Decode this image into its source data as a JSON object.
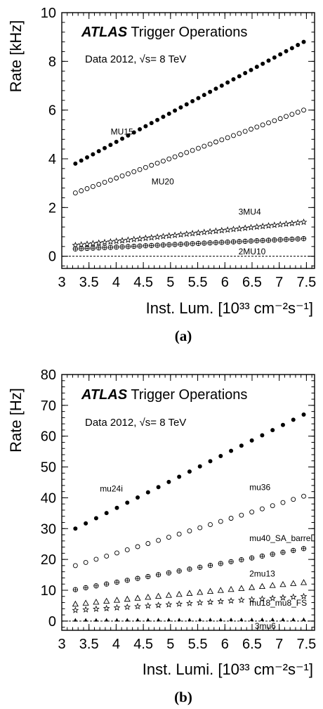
{
  "chart_data": [
    {
      "type": "scatter",
      "panel_label": "(a)",
      "title_bold": "ATLAS",
      "title_rest": " Trigger Operations",
      "subtitle": "Data 2012,  √s= 8 TeV",
      "xlabel": "Inst. Lum. [10³³ cm⁻²s⁻¹]",
      "ylabel": "Rate [kHz]",
      "xlim": [
        3,
        7.65
      ],
      "ylim": [
        -0.5,
        10
      ],
      "xticks": [
        3,
        3.5,
        4,
        4.5,
        5,
        5.5,
        6,
        6.5,
        7,
        7.5
      ],
      "xtick_labels": [
        "3",
        "3.5",
        "4",
        "4.5",
        "5",
        "5.5",
        "6",
        "6.5",
        "7",
        "7.5"
      ],
      "yticks": [
        0,
        2,
        4,
        6,
        8,
        10
      ],
      "ytick_labels": [
        "0",
        "2",
        "4",
        "6",
        "8",
        "10"
      ],
      "reference_line_y": 0,
      "series": [
        {
          "name": "MU15",
          "marker": "filled-circle",
          "x_start": 3.25,
          "x_end": 7.45,
          "y_start": 3.8,
          "y_end": 8.8,
          "n": 40,
          "label_x": 3.9,
          "label_y": 5.0
        },
        {
          "name": "MU20",
          "marker": "open-circle",
          "x_start": 3.25,
          "x_end": 7.45,
          "y_start": 2.6,
          "y_end": 6.0,
          "n": 40,
          "label_x": 4.65,
          "label_y": 2.95
        },
        {
          "name": "3MU4",
          "marker": "star",
          "x_start": 3.25,
          "x_end": 7.45,
          "y_start": 0.45,
          "y_end": 1.4,
          "n": 40,
          "label_x": 6.25,
          "label_y": 1.7
        },
        {
          "name": "2MU10",
          "marker": "open-circle-cross",
          "x_start": 3.25,
          "x_end": 7.45,
          "y_start": 0.3,
          "y_end": 0.72,
          "n": 40,
          "label_x": 6.25,
          "label_y": 0.08
        }
      ]
    },
    {
      "type": "scatter",
      "panel_label": "(b)",
      "title_bold": "ATLAS",
      "title_rest": " Trigger Operations",
      "subtitle": "Data 2012,   √s= 8 TeV",
      "xlabel": "Inst. Lumi. [10³³ cm⁻²s⁻¹]",
      "ylabel": "Rate [Hz]",
      "xlim": [
        3,
        7.65
      ],
      "ylim": [
        -3,
        80
      ],
      "xticks": [
        3,
        3.5,
        4,
        4.5,
        5,
        5.5,
        6,
        6.5,
        7,
        7.5
      ],
      "xtick_labels": [
        "3",
        "3.5",
        "4",
        "4.5",
        "5",
        "5.5",
        "6",
        "6.5",
        "7",
        "7.5"
      ],
      "yticks": [
        0,
        10,
        20,
        30,
        40,
        50,
        60,
        70,
        80
      ],
      "ytick_labels": [
        "0",
        "10",
        "20",
        "30",
        "40",
        "50",
        "60",
        "70",
        "80"
      ],
      "reference_line_y": 0,
      "series": [
        {
          "name": "mu24i",
          "marker": "filled-circle",
          "x_start": 3.25,
          "x_end": 7.45,
          "y_start": 30,
          "y_end": 67,
          "n": 23,
          "label_x": 3.7,
          "label_y": 42
        },
        {
          "name": "mu36",
          "marker": "open-circle",
          "x_start": 3.25,
          "x_end": 7.45,
          "y_start": 18,
          "y_end": 40.5,
          "n": 23,
          "label_x": 6.45,
          "label_y": 42.5
        },
        {
          "name": "mu40_SA_barrel",
          "marker": "open-circle-cross",
          "x_start": 3.25,
          "x_end": 7.45,
          "y_start": 10.2,
          "y_end": 23.5,
          "n": 23,
          "label_x": 6.45,
          "label_y": 26
        },
        {
          "name": "2mu13",
          "marker": "triangle",
          "x_start": 3.25,
          "x_end": 7.45,
          "y_start": 5.5,
          "y_end": 12.5,
          "n": 23,
          "label_x": 6.45,
          "label_y": 14.5
        },
        {
          "name": "mu18_mu8_FS",
          "marker": "star",
          "x_start": 3.25,
          "x_end": 7.45,
          "y_start": 3.5,
          "y_end": 8.0,
          "n": 23,
          "label_x": 6.45,
          "label_y": 5.0
        },
        {
          "name": "3mu6",
          "marker": "filled-triangle",
          "x_start": 3.25,
          "x_end": 7.45,
          "y_start": 0.3,
          "y_end": 0.5,
          "n": 23,
          "label_x": 6.55,
          "label_y": -2.5
        }
      ]
    }
  ]
}
